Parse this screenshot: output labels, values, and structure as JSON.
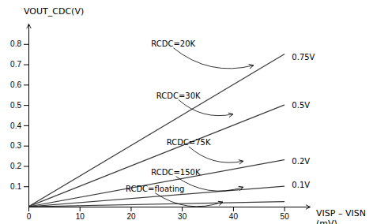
{
  "chart_data": {
    "type": "line",
    "x": [
      0,
      50
    ],
    "series": [
      {
        "values": [
          0,
          0.75
        ]
      },
      {
        "values": [
          0,
          0.5
        ]
      },
      {
        "values": [
          0,
          0.23
        ]
      },
      {
        "values": [
          0,
          0.1
        ]
      },
      {
        "values": [
          0,
          0.025
        ]
      }
    ],
    "color": "#3a3a3a",
    "xlim": [
      0,
      55
    ],
    "ylim": [
      0,
      0.9
    ],
    "xticks": [
      0,
      10,
      20,
      30,
      40,
      50
    ],
    "yticks": [
      0.1,
      0.2,
      0.3,
      0.4,
      0.5,
      0.6,
      0.7,
      0.8
    ],
    "x_label": "VISP – VISN\n(mV)",
    "y_label": "VOUT_CDC(V)",
    "annotations": [
      {
        "text": "RCDC=20K",
        "x": 24,
        "y": 0.8,
        "arrow_x": 44,
        "arrow_y": 0.695
      },
      {
        "text": "0.75V",
        "x": 51.5,
        "y": 0.735
      },
      {
        "text": "RCDC=30K",
        "x": 25,
        "y": 0.545,
        "arrow_x": 40,
        "arrow_y": 0.455
      },
      {
        "text": "0.5V",
        "x": 51.5,
        "y": 0.495
      },
      {
        "text": "RCDC=75K",
        "x": 27,
        "y": 0.315,
        "arrow_x": 42,
        "arrow_y": 0.224
      },
      {
        "text": "0.2V",
        "x": 51.5,
        "y": 0.22
      },
      {
        "text": "RCDC=150K",
        "x": 24,
        "y": 0.168,
        "arrow_x": 42,
        "arrow_y": 0.096
      },
      {
        "text": "0.1V",
        "x": 51.5,
        "y": 0.103
      },
      {
        "text": "RCDC=floating",
        "x": 19,
        "y": 0.087,
        "arrow_x": 38,
        "arrow_y": 0.023
      }
    ]
  }
}
